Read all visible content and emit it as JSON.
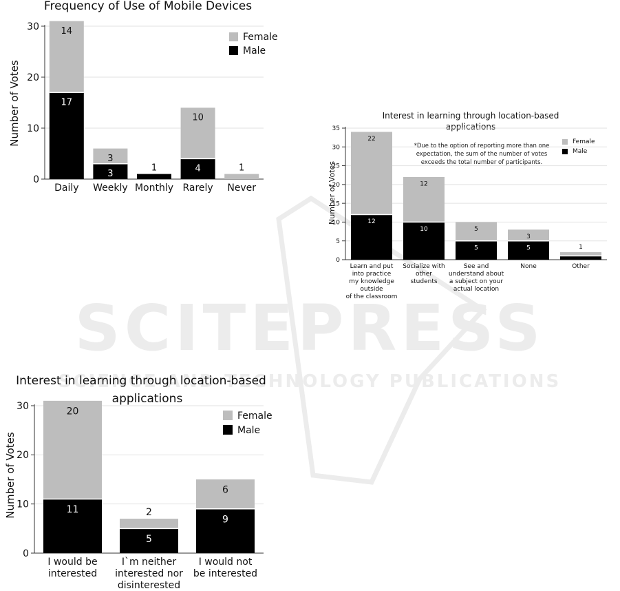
{
  "watermark": {
    "main": "SCITEPRESS",
    "sub": "SCIENCE AND TECHNOLOGY PUBLICATIONS"
  },
  "colors": {
    "male": "#000000",
    "female": "#bdbdbd",
    "grid": "#e2e2e2",
    "axis": "#333333",
    "watermark": "#ececec"
  },
  "chart_data": [
    {
      "type": "bar",
      "stacked": true,
      "title": "Frequency of Use of Mobile Devices",
      "ylabel": "Number of Votes",
      "xlabel": "",
      "ylim": [
        0,
        30
      ],
      "yticks": [
        0,
        10,
        20,
        30
      ],
      "grid": true,
      "legend_position": "top-right",
      "categories": [
        "Daily",
        "Weekly",
        "Monthly",
        "Rarely",
        "Never"
      ],
      "series": [
        {
          "name": "Male",
          "values": [
            17,
            3,
            1,
            4,
            0
          ],
          "labels": [
            "17",
            "3",
            "1",
            "4",
            ""
          ]
        },
        {
          "name": "Female",
          "values": [
            14,
            3,
            0,
            10,
            1
          ],
          "labels": [
            "14",
            "3",
            "",
            "10",
            "1"
          ]
        }
      ],
      "legend_items": [
        "Female",
        "Male"
      ]
    },
    {
      "type": "bar",
      "stacked": true,
      "title": "Interest in learning through location-based applications",
      "ylabel": "Number of Votes",
      "xlabel": "",
      "ylim": [
        0,
        35
      ],
      "yticks": [
        0,
        5,
        10,
        15,
        20,
        25,
        30,
        35
      ],
      "grid": true,
      "legend_position": "top-right",
      "annotation": "*Due to the option of reporting more than one expectation, the sum of the number of votes exceeds the total number of participants.",
      "categories": [
        "Learn and put into practice my knowledge outside of the classroom",
        "Socialize with other students",
        "See and understand about a subject on your actual location",
        "None",
        "Other"
      ],
      "series": [
        {
          "name": "Male",
          "values": [
            12,
            10,
            5,
            5,
            1
          ],
          "labels": [
            "12",
            "10",
            "5",
            "5",
            ""
          ]
        },
        {
          "name": "Female",
          "values": [
            22,
            12,
            5,
            3,
            1
          ],
          "labels": [
            "22",
            "12",
            "5",
            "3",
            "1"
          ]
        }
      ],
      "legend_items": [
        "Female",
        "Male"
      ]
    },
    {
      "type": "bar",
      "stacked": true,
      "title": "Interest in learning through location-based applications",
      "ylabel": "Number of Votes",
      "xlabel": "",
      "ylim": [
        0,
        30
      ],
      "yticks": [
        0,
        10,
        20,
        30
      ],
      "grid": true,
      "legend_position": "top-right",
      "categories": [
        "I would be interested",
        "I`m neither interested nor disinterested",
        "I would not be interested"
      ],
      "series": [
        {
          "name": "Male",
          "values": [
            11,
            5,
            9
          ],
          "labels": [
            "11",
            "5",
            "9"
          ]
        },
        {
          "name": "Female",
          "values": [
            20,
            2,
            6
          ],
          "labels": [
            "20",
            "2",
            "6"
          ]
        }
      ],
      "legend_items": [
        "Female",
        "Male"
      ]
    }
  ]
}
